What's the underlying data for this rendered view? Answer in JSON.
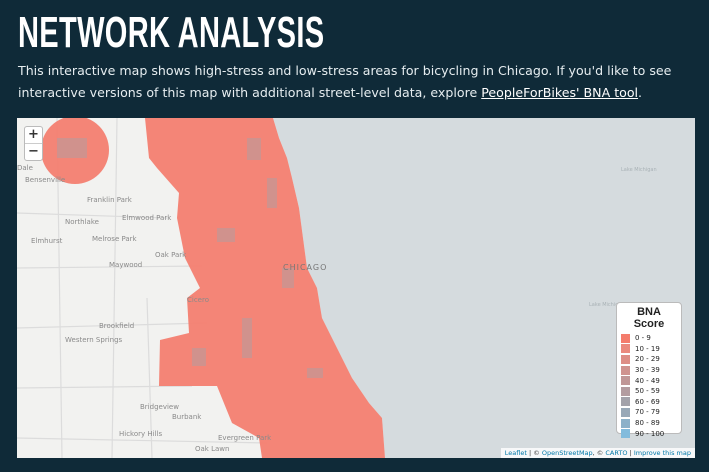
{
  "header": {
    "title": "NETWORK ANALYSIS",
    "intro": [
      "This interactive map shows high-stress and low-stress areas for bicycling in Chicago. If you'd like to see interactive versions of this map with additional street-level data, explore ",
      "PeopleForBikes' BNA tool",
      "."
    ]
  },
  "map": {
    "zoom_in": "+",
    "zoom_out": "−",
    "places": [
      "Dale",
      "Bensenville",
      "Franklin Park",
      "Northlake",
      "Elmwood Park",
      "Elmhurst",
      "Melrose Park",
      "Maywood",
      "Oak Park",
      "CHICAGO",
      "Cicero",
      "Brookfield",
      "Western Springs",
      "Bridgeview",
      "Burbank",
      "Hickory Hills",
      "Evergreen Park",
      "Oak Lawn",
      "Lake Michigan",
      "Lake Michigan"
    ],
    "legend": {
      "title": "BNA Score",
      "items": [
        {
          "label": "0 - 9",
          "color": "#f47c6c"
        },
        {
          "label": "10 - 19",
          "color": "#ea8a7e"
        },
        {
          "label": "20 - 29",
          "color": "#dd8e86"
        },
        {
          "label": "30 - 39",
          "color": "#cf938f"
        },
        {
          "label": "40 - 49",
          "color": "#c09797"
        },
        {
          "label": "50 - 59",
          "color": "#b39ca0"
        },
        {
          "label": "60 - 69",
          "color": "#a3a2aa"
        },
        {
          "label": "70 - 79",
          "color": "#98a8b7"
        },
        {
          "label": "80 - 89",
          "color": "#8cb1c9"
        },
        {
          "label": "90 - 100",
          "color": "#82bbdc"
        }
      ]
    },
    "attribution": [
      "Leaflet",
      " | © ",
      "OpenStreetMap",
      ", © ",
      "CARTO",
      " | ",
      "Improve this map"
    ]
  }
}
